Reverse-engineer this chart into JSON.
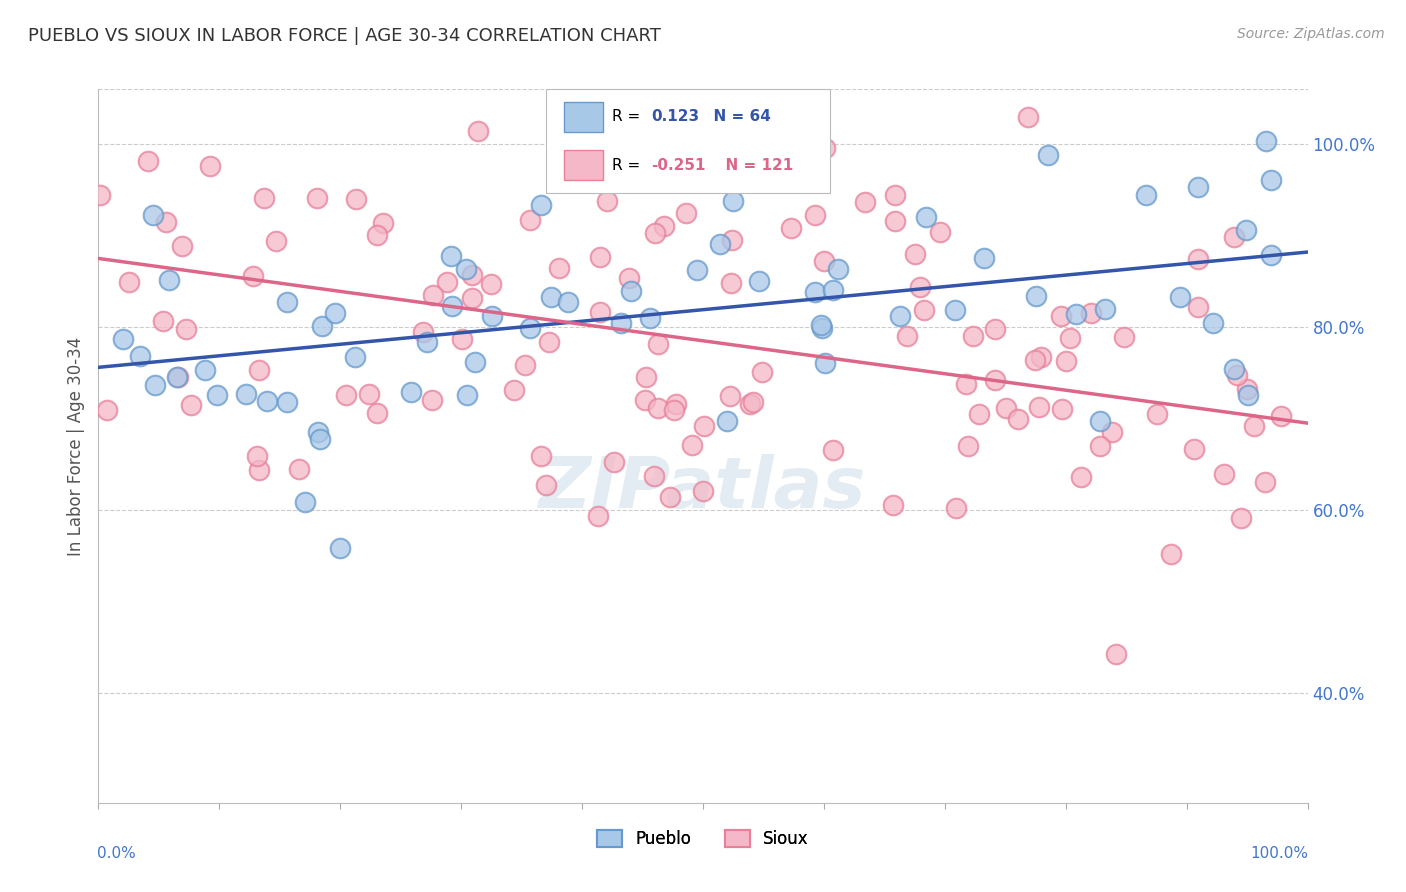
{
  "title": "PUEBLO VS SIOUX IN LABOR FORCE | AGE 30-34 CORRELATION CHART",
  "source_text": "Source: ZipAtlas.com",
  "ylabel": "In Labor Force | Age 30-34",
  "xlim": [
    0.0,
    1.0
  ],
  "ylim": [
    0.28,
    1.06
  ],
  "pueblo_face_color": "#a8c8e8",
  "pueblo_edge_color": "#6699cc",
  "sioux_face_color": "#f4b8c8",
  "sioux_edge_color": "#e88099",
  "pueblo_line_color": "#3355aa",
  "sioux_line_color": "#dd6688",
  "pueblo_R": 0.123,
  "pueblo_N": 64,
  "sioux_R": -0.251,
  "sioux_N": 121,
  "pueblo_line_x0": 0.0,
  "pueblo_line_y0": 0.756,
  "pueblo_line_x1": 1.0,
  "pueblo_line_y1": 0.882,
  "sioux_line_x0": 0.0,
  "sioux_line_y0": 0.875,
  "sioux_line_x1": 1.0,
  "sioux_line_y1": 0.695,
  "ytick_vals": [
    0.4,
    0.6,
    0.8,
    1.0
  ],
  "ytick_labels": [
    "40.0%",
    "60.0%",
    "80.0%",
    "100.0%"
  ],
  "watermark_text": "ZIPatlas",
  "background_color": "#ffffff",
  "grid_color": "#cccccc",
  "title_color": "#333333",
  "axis_label_color": "#4477cc",
  "source_color": "#999999"
}
